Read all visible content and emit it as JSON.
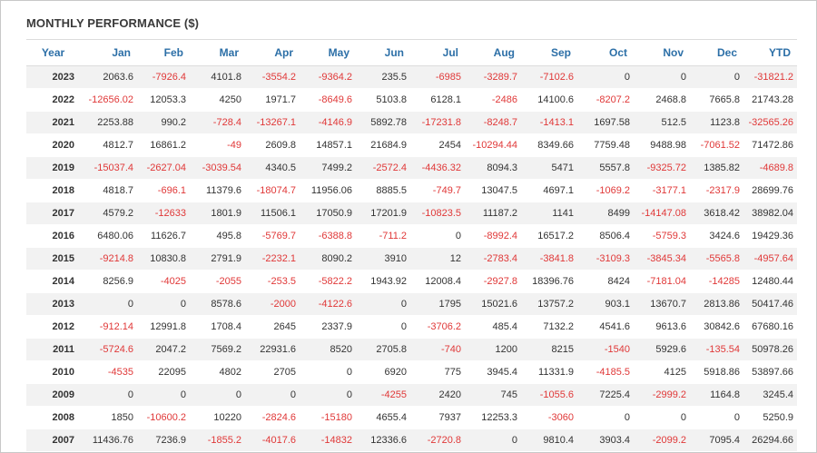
{
  "title": "MONTHLY PERFORMANCE ($)",
  "columns": [
    "Year",
    "Jan",
    "Feb",
    "Mar",
    "Apr",
    "May",
    "Jun",
    "Jul",
    "Aug",
    "Sep",
    "Oct",
    "Nov",
    "Dec",
    "YTD"
  ],
  "rows": [
    {
      "year": "2023",
      "values": [
        "2063.6",
        "-7926.4",
        "4101.8",
        "-3554.2",
        "-9364.2",
        "235.5",
        "-6985",
        "-3289.7",
        "-7102.6",
        "0",
        "0",
        "0",
        "-31821.2"
      ]
    },
    {
      "year": "2022",
      "values": [
        "-12656.02",
        "12053.3",
        "4250",
        "1971.7",
        "-8649.6",
        "5103.8",
        "6128.1",
        "-2486",
        "14100.6",
        "-8207.2",
        "2468.8",
        "7665.8",
        "21743.28"
      ]
    },
    {
      "year": "2021",
      "values": [
        "2253.88",
        "990.2",
        "-728.4",
        "-13267.1",
        "-4146.9",
        "5892.78",
        "-17231.8",
        "-8248.7",
        "-1413.1",
        "1697.58",
        "512.5",
        "1123.8",
        "-32565.26"
      ]
    },
    {
      "year": "2020",
      "values": [
        "4812.7",
        "16861.2",
        "-49",
        "2609.8",
        "14857.1",
        "21684.9",
        "2454",
        "-10294.44",
        "8349.66",
        "7759.48",
        "9488.98",
        "-7061.52",
        "71472.86"
      ]
    },
    {
      "year": "2019",
      "values": [
        "-15037.4",
        "-2627.04",
        "-3039.54",
        "4340.5",
        "7499.2",
        "-2572.4",
        "-4436.32",
        "8094.3",
        "5471",
        "5557.8",
        "-9325.72",
        "1385.82",
        "-4689.8"
      ]
    },
    {
      "year": "2018",
      "values": [
        "4818.7",
        "-696.1",
        "11379.6",
        "-18074.7",
        "11956.06",
        "8885.5",
        "-749.7",
        "13047.5",
        "4697.1",
        "-1069.2",
        "-3177.1",
        "-2317.9",
        "28699.76"
      ]
    },
    {
      "year": "2017",
      "values": [
        "4579.2",
        "-12633",
        "1801.9",
        "11506.1",
        "17050.9",
        "17201.9",
        "-10823.5",
        "11187.2",
        "1141",
        "8499",
        "-14147.08",
        "3618.42",
        "38982.04"
      ]
    },
    {
      "year": "2016",
      "values": [
        "6480.06",
        "11626.7",
        "495.8",
        "-5769.7",
        "-6388.8",
        "-711.2",
        "0",
        "-8992.4",
        "16517.2",
        "8506.4",
        "-5759.3",
        "3424.6",
        "19429.36"
      ]
    },
    {
      "year": "2015",
      "values": [
        "-9214.8",
        "10830.8",
        "2791.9",
        "-2232.1",
        "8090.2",
        "3910",
        "12",
        "-2783.4",
        "-3841.8",
        "-3109.3",
        "-3845.34",
        "-5565.8",
        "-4957.64"
      ]
    },
    {
      "year": "2014",
      "values": [
        "8256.9",
        "-4025",
        "-2055",
        "-253.5",
        "-5822.2",
        "1943.92",
        "12008.4",
        "-2927.8",
        "18396.76",
        "8424",
        "-7181.04",
        "-14285",
        "12480.44"
      ]
    },
    {
      "year": "2013",
      "values": [
        "0",
        "0",
        "8578.6",
        "-2000",
        "-4122.6",
        "0",
        "1795",
        "15021.6",
        "13757.2",
        "903.1",
        "13670.7",
        "2813.86",
        "50417.46"
      ]
    },
    {
      "year": "2012",
      "values": [
        "-912.14",
        "12991.8",
        "1708.4",
        "2645",
        "2337.9",
        "0",
        "-3706.2",
        "485.4",
        "7132.2",
        "4541.6",
        "9613.6",
        "30842.6",
        "67680.16"
      ]
    },
    {
      "year": "2011",
      "values": [
        "-5724.6",
        "2047.2",
        "7569.2",
        "22931.6",
        "8520",
        "2705.8",
        "-740",
        "1200",
        "8215",
        "-1540",
        "5929.6",
        "-135.54",
        "50978.26"
      ]
    },
    {
      "year": "2010",
      "values": [
        "-4535",
        "22095",
        "4802",
        "2705",
        "0",
        "6920",
        "775",
        "3945.4",
        "11331.9",
        "-4185.5",
        "4125",
        "5918.86",
        "53897.66"
      ]
    },
    {
      "year": "2009",
      "values": [
        "0",
        "0",
        "0",
        "0",
        "0",
        "-4255",
        "2420",
        "745",
        "-1055.6",
        "7225.4",
        "-2999.2",
        "1164.8",
        "3245.4"
      ]
    },
    {
      "year": "2008",
      "values": [
        "1850",
        "-10600.2",
        "10220",
        "-2824.6",
        "-15180",
        "4655.4",
        "7937",
        "12253.3",
        "-3060",
        "0",
        "0",
        "0",
        "5250.9"
      ]
    },
    {
      "year": "2007",
      "values": [
        "11436.76",
        "7236.9",
        "-1855.2",
        "-4017.6",
        "-14832",
        "12336.6",
        "-2720.8",
        "0",
        "9810.4",
        "3903.4",
        "-2099.2",
        "7095.4",
        "26294.66"
      ]
    }
  ],
  "colors": {
    "header_text": "#2c6fa7",
    "negative": "#e03838",
    "positive": "#333333",
    "stripe": "#f2f2f2"
  }
}
